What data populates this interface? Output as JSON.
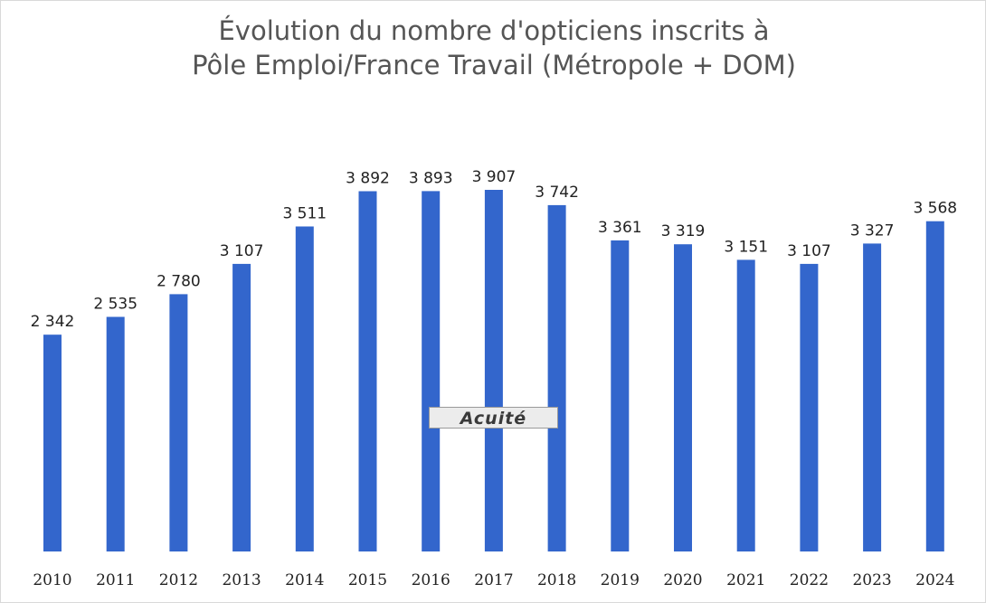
{
  "chart_data": {
    "type": "bar",
    "title": "Évolution du nombre d'opticiens inscrits à",
    "subtitle": "Pôle Emploi/France Travail (Métropole + DOM)",
    "categories": [
      "2010",
      "2011",
      "2012",
      "2013",
      "2014",
      "2015",
      "2016",
      "2017",
      "2018",
      "2019",
      "2020",
      "2021",
      "2022",
      "2023",
      "2024"
    ],
    "values": [
      2342,
      2535,
      2780,
      3107,
      3511,
      3892,
      3893,
      3907,
      3742,
      3361,
      3319,
      3151,
      3107,
      3327,
      3568
    ],
    "value_labels": [
      "2 342",
      "2 535",
      "2 780",
      "3 107",
      "3 511",
      "3 892",
      "3 893",
      "3 907",
      "3 742",
      "3 361",
      "3 319",
      "3 151",
      "3 107",
      "3 327",
      "3 568"
    ],
    "ylim": [
      0,
      3907
    ],
    "xlabel": "",
    "ylabel": "",
    "grid": false,
    "legend": "none",
    "bar_color": "#3366cc"
  },
  "watermark": "Acuité"
}
